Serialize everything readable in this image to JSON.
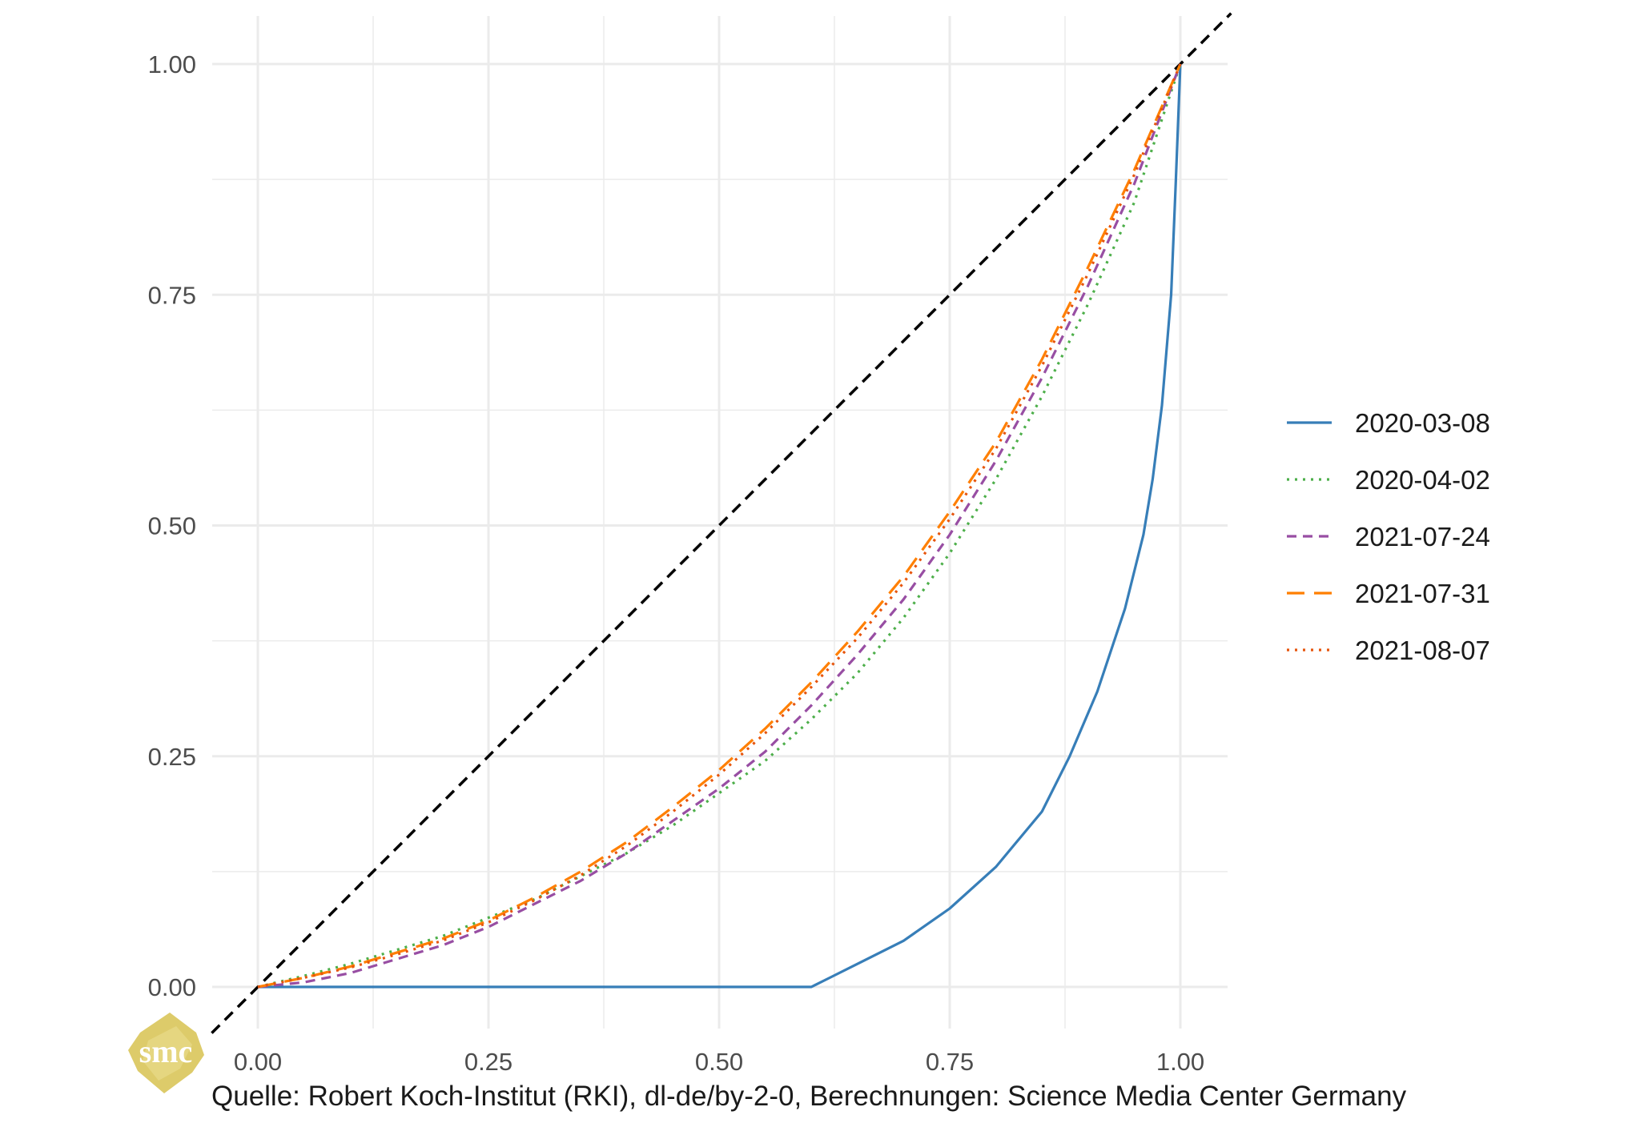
{
  "chart_data": {
    "type": "line",
    "xlim": [
      0,
      1
    ],
    "ylim": [
      0,
      1
    ],
    "x_ticks": [
      "0.00",
      "0.25",
      "0.50",
      "0.75",
      "1.00"
    ],
    "y_ticks": [
      "0.00",
      "0.25",
      "0.50",
      "0.75",
      "1.00"
    ],
    "grid": true,
    "legend_position": "right",
    "reference_line": {
      "x": [
        0,
        1
      ],
      "y": [
        0,
        1
      ],
      "color": "#000000",
      "dash": "dashed",
      "extends_beyond_axes": true
    },
    "series": [
      {
        "name": "2020-03-08",
        "color": "#377EB8",
        "dash": "solid",
        "x": [
          0,
          0.6,
          0.62,
          0.65,
          0.7,
          0.75,
          0.8,
          0.85,
          0.88,
          0.91,
          0.94,
          0.96,
          0.97,
          0.98,
          0.99,
          0.995,
          1.0
        ],
        "y": [
          0,
          0,
          0.01,
          0.025,
          0.05,
          0.085,
          0.13,
          0.19,
          0.25,
          0.32,
          0.41,
          0.49,
          0.55,
          0.63,
          0.75,
          0.87,
          1.0
        ]
      },
      {
        "name": "2020-04-02",
        "color": "#4DAF4A",
        "dash": "dotted",
        "x": [
          0,
          0.05,
          0.1,
          0.15,
          0.2,
          0.25,
          0.3,
          0.35,
          0.4,
          0.45,
          0.5,
          0.55,
          0.6,
          0.65,
          0.7,
          0.75,
          0.8,
          0.85,
          0.9,
          0.95,
          1.0
        ],
        "y": [
          0,
          0.012,
          0.025,
          0.04,
          0.055,
          0.075,
          0.095,
          0.12,
          0.145,
          0.175,
          0.21,
          0.245,
          0.29,
          0.34,
          0.4,
          0.47,
          0.55,
          0.64,
          0.74,
          0.85,
          1.0
        ]
      },
      {
        "name": "2021-07-24",
        "color": "#984EA3",
        "dash": "dashed",
        "x": [
          0,
          0.05,
          0.1,
          0.15,
          0.2,
          0.25,
          0.3,
          0.35,
          0.4,
          0.45,
          0.5,
          0.55,
          0.6,
          0.65,
          0.7,
          0.75,
          0.8,
          0.85,
          0.9,
          0.95,
          1.0
        ],
        "y": [
          0,
          0.005,
          0.015,
          0.03,
          0.045,
          0.065,
          0.09,
          0.115,
          0.145,
          0.18,
          0.215,
          0.255,
          0.305,
          0.36,
          0.42,
          0.49,
          0.57,
          0.66,
          0.76,
          0.87,
          1.0
        ]
      },
      {
        "name": "2021-07-31",
        "color": "#FF7F00",
        "dash": "longdash",
        "x": [
          0,
          0.05,
          0.1,
          0.15,
          0.2,
          0.25,
          0.3,
          0.35,
          0.4,
          0.45,
          0.5,
          0.55,
          0.6,
          0.65,
          0.7,
          0.75,
          0.8,
          0.85,
          0.9,
          0.95,
          1.0
        ],
        "y": [
          0,
          0.01,
          0.022,
          0.037,
          0.052,
          0.072,
          0.097,
          0.125,
          0.157,
          0.195,
          0.235,
          0.28,
          0.33,
          0.385,
          0.445,
          0.515,
          0.59,
          0.68,
          0.78,
          0.885,
          1.0
        ]
      },
      {
        "name": "2021-08-07",
        "color": "#E6550D",
        "dash": "dotted",
        "x": [
          0,
          0.05,
          0.1,
          0.15,
          0.2,
          0.25,
          0.3,
          0.35,
          0.4,
          0.45,
          0.5,
          0.55,
          0.6,
          0.65,
          0.7,
          0.75,
          0.8,
          0.85,
          0.9,
          0.95,
          1.0
        ],
        "y": [
          0,
          0.01,
          0.021,
          0.035,
          0.05,
          0.07,
          0.094,
          0.121,
          0.153,
          0.19,
          0.23,
          0.275,
          0.325,
          0.378,
          0.438,
          0.507,
          0.583,
          0.673,
          0.773,
          0.88,
          1.0
        ]
      }
    ]
  },
  "caption": "Quelle: Robert Koch-Institut (RKI), dl-de/by-2-0, Berechnungen: Science Media Center Germany",
  "logo": {
    "text": "smc",
    "color": "#D9C55A"
  }
}
